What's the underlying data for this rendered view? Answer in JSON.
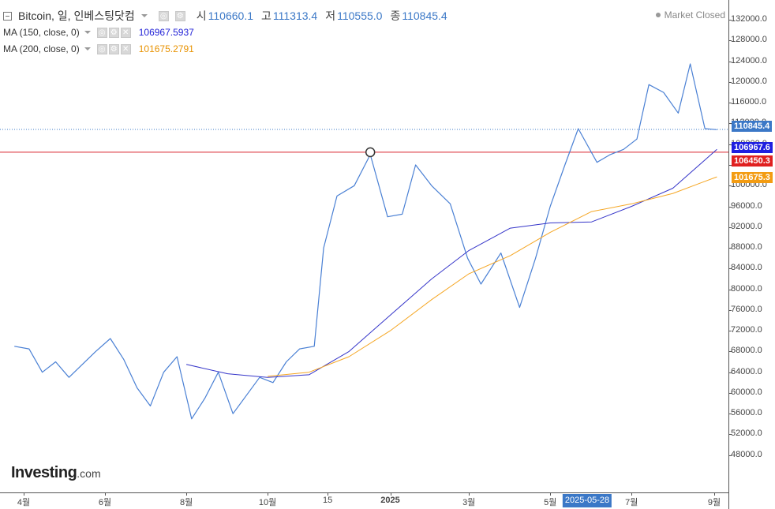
{
  "header": {
    "title": "Bitcoin, 일, 인베스팅닷컴",
    "open_label": "시",
    "open": "110660.1",
    "high_label": "고",
    "high": "111313.4",
    "low_label": "저",
    "low": "110555.0",
    "close_label": "종",
    "close": "110845.4"
  },
  "indicators": [
    {
      "label": "MA (150, close, 0)",
      "value": "106967.5937",
      "color": "#2a2ad6"
    },
    {
      "label": "MA (200, close, 0)",
      "value": "101675.2791",
      "color": "#f39c12"
    }
  ],
  "market_status": "Market Closed",
  "logo": {
    "main": "Investing",
    "suffix": ".com"
  },
  "colors": {
    "price": "#4a80d4",
    "ma150": "#3535c9",
    "ma200": "#f5a623",
    "hline": "#d9202b",
    "last": "#3b78c7"
  },
  "price_tags": [
    {
      "name": "last-price",
      "text": "110845.4",
      "bg": "#3b78c7"
    },
    {
      "name": "ma150",
      "text": "106967.6",
      "bg": "#1f1fe0"
    },
    {
      "name": "hline",
      "text": "106450.3",
      "bg": "#e02020"
    },
    {
      "name": "ma200",
      "text": "101675.3",
      "bg": "#f39c12"
    }
  ],
  "y_axis_labels": [
    "132000.0",
    "128000.0",
    "124000.0",
    "120000.0",
    "116000.0",
    "112000.0",
    "108000.0",
    "104000.0",
    "100000.0",
    "96000.0",
    "92000.0",
    "88000.0",
    "84000.0",
    "80000.0",
    "76000.0",
    "72000.0",
    "68000.0",
    "64000.0",
    "60000.0",
    "56000.0",
    "52000.0",
    "48000.0"
  ],
  "x_axis_labels": [
    "4월",
    "6월",
    "8월",
    "10월",
    "15",
    "2025",
    "3월",
    "5월",
    "7월",
    "9월"
  ],
  "x_highlight": "2025-05-28",
  "chart_data": {
    "type": "line",
    "title": "Bitcoin, 일, 인베스팅닷컴",
    "ylim": [
      44000,
      134000
    ],
    "horizontal_line": 106450.3,
    "marker_price": 106450.3,
    "series": [
      {
        "name": "Bitcoin",
        "x": [
          "2024-03-25",
          "2024-04-05",
          "2024-04-15",
          "2024-04-25",
          "2024-05-05",
          "2024-05-15",
          "2024-05-25",
          "2024-06-05",
          "2024-06-15",
          "2024-06-25",
          "2024-07-05",
          "2024-07-15",
          "2024-07-25",
          "2024-08-05",
          "2024-08-15",
          "2024-08-25",
          "2024-09-05",
          "2024-09-15",
          "2024-09-25",
          "2024-10-05",
          "2024-10-15",
          "2024-10-25",
          "2024-11-05",
          "2024-11-12",
          "2024-11-22",
          "2024-12-05",
          "2024-12-17",
          "2024-12-30",
          "2025-01-10",
          "2025-01-20",
          "2025-02-01",
          "2025-02-15",
          "2025-02-28",
          "2025-03-10",
          "2025-03-25",
          "2025-04-08",
          "2025-04-20",
          "2025-05-01",
          "2025-05-12",
          "2025-05-22",
          "2025-06-05",
          "2025-06-15",
          "2025-06-25",
          "2025-07-05",
          "2025-07-14",
          "2025-07-25",
          "2025-08-05",
          "2025-08-14",
          "2025-08-25",
          "2025-09-03"
        ],
        "values": [
          69000,
          68500,
          64000,
          66000,
          63000,
          65500,
          68000,
          70500,
          66500,
          61000,
          57500,
          64000,
          67000,
          55000,
          59000,
          64000,
          56000,
          59500,
          63000,
          62000,
          66000,
          68500,
          69000,
          88000,
          98000,
          100000,
          106000,
          94000,
          94500,
          104000,
          100000,
          96500,
          86000,
          81000,
          87000,
          76500,
          86000,
          96000,
          104000,
          111000,
          104500,
          106000,
          107000,
          109000,
          119500,
          118000,
          114000,
          123500,
          111000,
          110800
        ]
      },
      {
        "name": "MA (150, close, 0)",
        "x": [
          "2024-08-01",
          "2024-09-01",
          "2024-10-01",
          "2024-11-01",
          "2024-12-01",
          "2025-01-01",
          "2025-02-01",
          "2025-03-01",
          "2025-04-01",
          "2025-05-01",
          "2025-06-01",
          "2025-07-01",
          "2025-08-01",
          "2025-09-03"
        ],
        "values": [
          65500,
          63700,
          63000,
          63500,
          68000,
          75000,
          82000,
          87500,
          91800,
          92800,
          93000,
          96000,
          99500,
          107000
        ]
      },
      {
        "name": "MA (200, close, 0)",
        "x": [
          "2024-10-01",
          "2024-11-01",
          "2024-12-01",
          "2025-01-01",
          "2025-02-01",
          "2025-03-01",
          "2025-04-01",
          "2025-05-01",
          "2025-06-01",
          "2025-07-01",
          "2025-08-01",
          "2025-09-03"
        ],
        "values": [
          63200,
          64000,
          67000,
          72000,
          78000,
          83000,
          86500,
          91000,
          95000,
          96500,
          98500,
          101700
        ]
      }
    ]
  }
}
